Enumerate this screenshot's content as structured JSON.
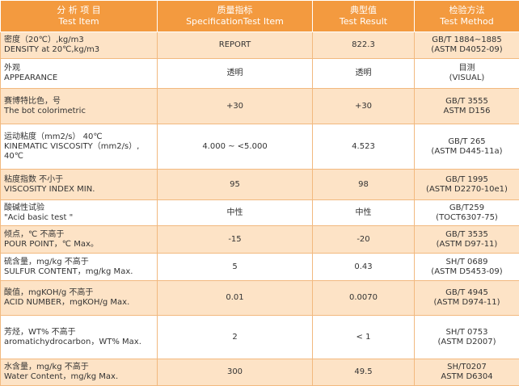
{
  "header": {
    "item_cn": "分 析 项 目",
    "item_en": "Test Item",
    "spec_cn": "质量指标",
    "spec_en": "SpecificationTest Item",
    "result_cn": "典型值",
    "result_en": "Test Result",
    "method_cn": "检验方法",
    "method_en": "Test Method"
  },
  "rows": [
    {
      "item_cn": "密度（20℃）,kg/m3",
      "item_en": "DENSITY at 20℃,kg/m3",
      "spec": "REPORT",
      "result": "822.3",
      "method_1": "GB/T 1884~1885",
      "method_2": "(ASTM D4052-09)"
    },
    {
      "item_cn": "外观",
      "item_en": "APPEARANCE",
      "spec": "透明",
      "result": "透明",
      "method_1": "目测",
      "method_2": "(VISUAL)"
    },
    {
      "item_cn": "赛博特比色，号",
      "item_en": "The bot colorimetric",
      "spec": "+30",
      "result": "+30",
      "method_1": "GB/T 3555",
      "method_2": "ASTM D156"
    },
    {
      "item_cn": "运动粘度（mm2/s） 40℃",
      "item_en": "KINEMATIC VISCOSITY（mm2/s）, 40℃",
      "spec": "4.000 ~ <5.000",
      "result": "4.523",
      "method_1": "GB/T 265",
      "method_2": "(ASTM D445-11a)"
    },
    {
      "item_cn": "粘度指数  不小于",
      "item_en": "VISCOSITY INDEX   MIN.",
      "spec": "95",
      "result": "98",
      "method_1": "GB/T 1995",
      "method_2": "(ASTM D2270-10e1)"
    },
    {
      "item_cn": "酸碱性试验",
      "item_en": "\"Acid basic test \"",
      "spec": "中性",
      "result": "中性",
      "method_1": "GB/T259",
      "method_2": "(TOCT6307-75)"
    },
    {
      "item_cn": "倾点，℃   不高于",
      "item_en": "POUR POINT，℃  Max。",
      "spec": "-15",
      "result": "-20",
      "method_1": "GB/T 3535",
      "method_2": "(ASTM D97-11)"
    },
    {
      "item_cn": "硫含量，mg/kg   不高于",
      "item_en": "SULFUR CONTENT，mg/kg Max.",
      "spec": "5",
      "result": "0.43",
      "method_1": "SH/T 0689",
      "method_2": "(ASTM D5453-09)"
    },
    {
      "item_cn": "酸值，mgKOH/g    不高于",
      "item_en": "ACID NUMBER，mgKOH/g Max.",
      "spec": "0.01",
      "result": "0.0070",
      "method_1": "GB/T 4945",
      "method_2": "(ASTM D974-11)"
    },
    {
      "item_cn": "芳烃，WT%    不高于",
      "item_en": "aromatichydrocarbon，WT% Max.",
      "spec": "2",
      "result": "< 1",
      "method_1": "SH/T 0753",
      "method_2": "(ASTM D2007)"
    },
    {
      "item_cn": "水含量，mg/kg   不高于",
      "item_en": "Water Content，mg/kg    Max.",
      "spec": "300",
      "result": "49.5",
      "method_1": "SH/T0207",
      "method_2": "ASTM D6304"
    }
  ]
}
